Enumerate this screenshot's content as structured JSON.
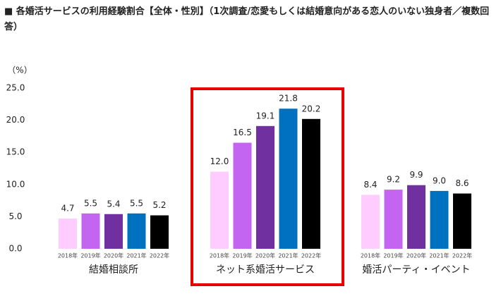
{
  "chart_data": {
    "type": "bar",
    "title": "■ 各婚活サービスの利用経験割合【全体・性別】（1次調査/恋愛もしくは結婚意向がある恋人のいない独身者／複数回答）",
    "y_unit": "（%）",
    "categories": [
      "結婚相談所",
      "ネット系婚活サービス",
      "婚活パーティ・イベント"
    ],
    "series": [
      {
        "name": "2018年",
        "color": "#ffccff",
        "values": [
          4.7,
          12.0,
          8.4
        ],
        "value_labels": [
          "4.7",
          "12.0",
          "8.4"
        ]
      },
      {
        "name": "2019年",
        "color": "#c465f2",
        "values": [
          5.5,
          16.5,
          9.2
        ],
        "value_labels": [
          "5.5",
          "16.5",
          "9.2"
        ]
      },
      {
        "name": "2020年",
        "color": "#7030a0",
        "values": [
          5.4,
          19.1,
          9.9
        ],
        "value_labels": [
          "5.4",
          "19.1",
          "9.9"
        ]
      },
      {
        "name": "2021年",
        "color": "#0070c0",
        "values": [
          5.5,
          21.8,
          9.0
        ],
        "value_labels": [
          "5.5",
          "21.8",
          "9.0"
        ]
      },
      {
        "name": "2022年",
        "color": "#000000",
        "values": [
          5.2,
          20.2,
          8.6
        ],
        "value_labels": [
          "5.2",
          "20.2",
          "8.6"
        ]
      }
    ],
    "ylim": [
      0,
      25
    ],
    "yticks": [
      {
        "value": 0,
        "label": "0.0"
      },
      {
        "value": 5,
        "label": "5.0"
      },
      {
        "value": 10,
        "label": "10.0"
      },
      {
        "value": 15,
        "label": "15.0"
      },
      {
        "value": 20,
        "label": "20.0"
      },
      {
        "value": 25,
        "label": "25.0"
      }
    ],
    "grid": false
  }
}
